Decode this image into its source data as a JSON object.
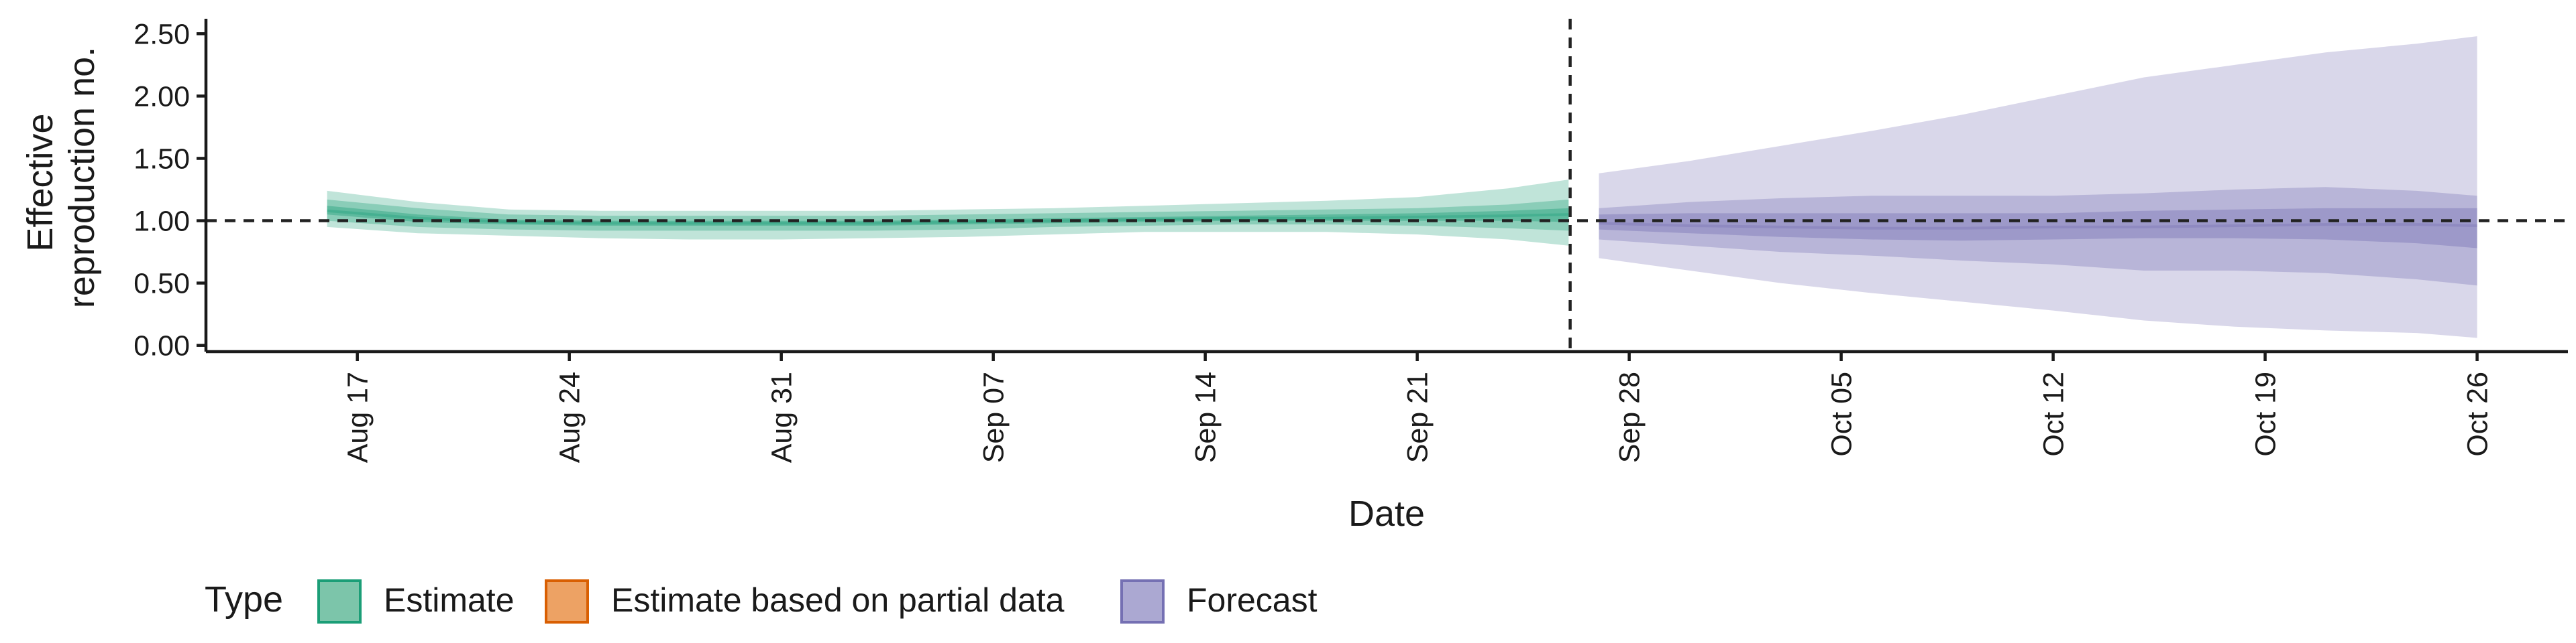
{
  "chart_data": {
    "type": "area",
    "title": "",
    "xlabel": "Date",
    "ylabel_lines": [
      "Effective",
      "reproduction no."
    ],
    "x_ticks": [
      "Aug 17",
      "Aug 24",
      "Aug 31",
      "Sep 07",
      "Sep 14",
      "Sep 21",
      "Sep 28",
      "Oct 05",
      "Oct 12",
      "Oct 19",
      "Oct 26"
    ],
    "y_ticks": [
      "0.00",
      "0.50",
      "1.00",
      "1.50",
      "2.00",
      "2.50"
    ],
    "ylim": [
      -0.05,
      2.62
    ],
    "xlim": [
      "2020-08-12",
      "2020-10-29"
    ],
    "grid": false,
    "reference_line_y": 1.0,
    "forecast_start": "2020-09-27",
    "legend": {
      "title": "Type",
      "placement": "bottom-left",
      "items": [
        {
          "label": "Estimate",
          "fill": "#7cc5aa",
          "stroke": "#1b9e77"
        },
        {
          "label": "Estimate based on partial data",
          "fill": "#eda264",
          "stroke": "#d95f02"
        },
        {
          "label": "Forecast",
          "fill": "#aba8d2",
          "stroke": "#7570b3"
        }
      ]
    },
    "series": [
      {
        "name": "Estimate",
        "color": "#1b9e77",
        "x": [
          "2020-08-16",
          "2020-08-19",
          "2020-08-22",
          "2020-08-25",
          "2020-08-28",
          "2020-08-31",
          "2020-09-03",
          "2020-09-06",
          "2020-09-09",
          "2020-09-12",
          "2020-09-15",
          "2020-09-18",
          "2020-09-21",
          "2020-09-24",
          "2020-09-26"
        ],
        "median": [
          1.08,
          1.02,
          0.99,
          0.98,
          0.98,
          0.98,
          0.98,
          0.99,
          1.0,
          1.01,
          1.02,
          1.02,
          1.03,
          1.04,
          1.05
        ],
        "inner_low": [
          1.05,
          0.99,
          0.97,
          0.96,
          0.96,
          0.96,
          0.96,
          0.97,
          0.98,
          0.99,
          1.0,
          1.0,
          1.0,
          1.0,
          0.99
        ],
        "inner_high": [
          1.12,
          1.05,
          1.01,
          1.0,
          1.0,
          1.0,
          1.0,
          1.01,
          1.02,
          1.03,
          1.04,
          1.05,
          1.06,
          1.08,
          1.1
        ],
        "mid_low": [
          1.0,
          0.95,
          0.93,
          0.92,
          0.92,
          0.92,
          0.92,
          0.93,
          0.95,
          0.96,
          0.97,
          0.97,
          0.96,
          0.94,
          0.92
        ],
        "mid_high": [
          1.17,
          1.1,
          1.05,
          1.04,
          1.04,
          1.04,
          1.04,
          1.05,
          1.06,
          1.07,
          1.08,
          1.09,
          1.1,
          1.13,
          1.17
        ],
        "outer_low": [
          0.95,
          0.9,
          0.88,
          0.86,
          0.85,
          0.85,
          0.86,
          0.87,
          0.89,
          0.91,
          0.91,
          0.91,
          0.89,
          0.85,
          0.8
        ],
        "outer_high": [
          1.24,
          1.15,
          1.09,
          1.08,
          1.08,
          1.08,
          1.08,
          1.09,
          1.1,
          1.12,
          1.14,
          1.16,
          1.19,
          1.26,
          1.33
        ]
      },
      {
        "name": "Forecast",
        "color": "#7570b3",
        "x": [
          "2020-09-27",
          "2020-09-30",
          "2020-10-03",
          "2020-10-06",
          "2020-10-09",
          "2020-10-12",
          "2020-10-15",
          "2020-10-18",
          "2020-10-21",
          "2020-10-24",
          "2020-10-26"
        ],
        "median": [
          0.98,
          0.96,
          0.95,
          0.94,
          0.94,
          0.95,
          0.95,
          0.96,
          0.97,
          0.97,
          0.96
        ],
        "inner_low": [
          0.93,
          0.9,
          0.87,
          0.85,
          0.84,
          0.85,
          0.86,
          0.86,
          0.85,
          0.82,
          0.78
        ],
        "inner_high": [
          1.05,
          1.06,
          1.06,
          1.06,
          1.06,
          1.06,
          1.08,
          1.09,
          1.1,
          1.1,
          1.1
        ],
        "mid_low": [
          0.85,
          0.8,
          0.75,
          0.72,
          0.68,
          0.65,
          0.6,
          0.6,
          0.58,
          0.53,
          0.48
        ],
        "mid_high": [
          1.1,
          1.15,
          1.18,
          1.2,
          1.2,
          1.2,
          1.22,
          1.25,
          1.27,
          1.24,
          1.2
        ],
        "outer_low": [
          0.7,
          0.6,
          0.5,
          0.42,
          0.35,
          0.28,
          0.2,
          0.15,
          0.12,
          0.1,
          0.06
        ],
        "outer_high": [
          1.38,
          1.48,
          1.6,
          1.72,
          1.85,
          2.0,
          2.15,
          2.25,
          2.35,
          2.42,
          2.48
        ]
      }
    ]
  }
}
